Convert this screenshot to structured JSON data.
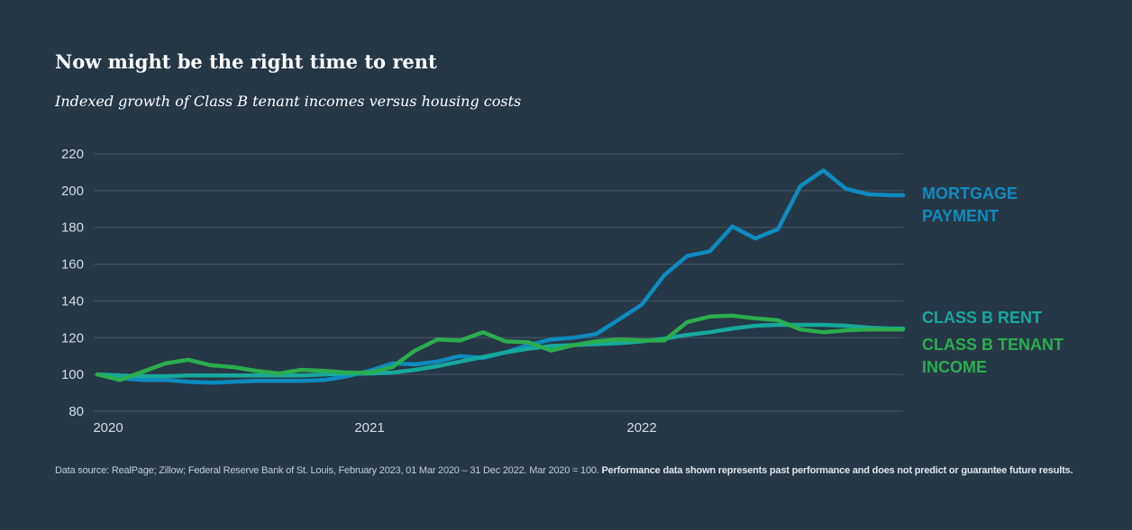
{
  "header": {
    "title": "Now might be the right time to rent",
    "subtitle": "Indexed growth of Class B tenant incomes versus housing costs"
  },
  "footer": {
    "source": "Data source: RealPage; Zillow; Federal Reserve Bank of St. Louis, February 2023, 01 Mar 2020 – 31 Dec 2022. Mar 2020 = 100.",
    "disclaimer": "Performance data shown represents past performance and does not predict or guarantee future results."
  },
  "colors": {
    "background": "#263746",
    "gridline": "#4a5966",
    "mortgage": "#0e8bbf",
    "rent": "#16a99c",
    "income": "#2bad4f"
  },
  "chart_data": {
    "type": "line",
    "title": "Now might be the right time to rent",
    "xlabel": "",
    "ylabel": "",
    "ylim": [
      80,
      220
    ],
    "yticks": [
      80,
      100,
      120,
      140,
      160,
      180,
      200,
      220
    ],
    "xlim": [
      2020.0,
      2022.96
    ],
    "xticks": [
      {
        "value": 2020.0,
        "label": "2020"
      },
      {
        "value": 2021.0,
        "label": "2021"
      },
      {
        "value": 2022.0,
        "label": "2022"
      }
    ],
    "grid": true,
    "x": [
      2020.0,
      2020.083,
      2020.167,
      2020.25,
      2020.333,
      2020.417,
      2020.5,
      2020.583,
      2020.667,
      2020.75,
      2020.833,
      2020.917,
      2021.0,
      2021.083,
      2021.167,
      2021.25,
      2021.333,
      2021.417,
      2021.5,
      2021.583,
      2021.667,
      2021.75,
      2021.833,
      2021.917,
      2022.0,
      2022.083,
      2022.167,
      2022.25,
      2022.333,
      2022.417,
      2022.5,
      2022.583,
      2022.667,
      2022.75,
      2022.833,
      2022.917,
      2022.96
    ],
    "series": [
      {
        "name": "Mortgage Payment",
        "label_lines": [
          "MORTGAGE",
          "PAYMENT"
        ],
        "color": "#0e8bbf",
        "values": [
          100,
          98,
          97,
          97,
          96,
          95.5,
          96,
          96.5,
          96.5,
          96.5,
          97,
          99,
          102,
          106,
          105.5,
          107,
          110,
          109,
          112,
          116,
          119,
          120,
          122,
          130,
          138,
          154,
          164.5,
          167,
          180.5,
          174,
          179,
          202.5,
          211,
          201,
          198,
          197.5,
          197.5
        ]
      },
      {
        "name": "Class B Rent",
        "label_lines": [
          "CLASS B RENT"
        ],
        "color": "#16a99c",
        "values": [
          100,
          99.5,
          99,
          99,
          99.5,
          99.5,
          99.5,
          99.5,
          99.5,
          99.5,
          100,
          100.5,
          100.5,
          101,
          102.5,
          104.5,
          107,
          109.5,
          112,
          114,
          115.5,
          116,
          116.5,
          117,
          118,
          119.5,
          121.5,
          123,
          125,
          126.5,
          127,
          127,
          127,
          126.5,
          125.5,
          125,
          125
        ]
      },
      {
        "name": "Class B Tenant Income",
        "label_lines": [
          "CLASS B TENANT",
          "INCOME"
        ],
        "color": "#2bad4f",
        "values": [
          100,
          97,
          101.5,
          106,
          108,
          105,
          104,
          102,
          100.5,
          102.5,
          102,
          101,
          101,
          104,
          113,
          119,
          118.5,
          123,
          118,
          117.5,
          113,
          116,
          118,
          119,
          118.5,
          118.5,
          128.5,
          131.5,
          132,
          130.5,
          129.5,
          124.5,
          123,
          124,
          124.5,
          124.5,
          124.5
        ]
      }
    ]
  }
}
